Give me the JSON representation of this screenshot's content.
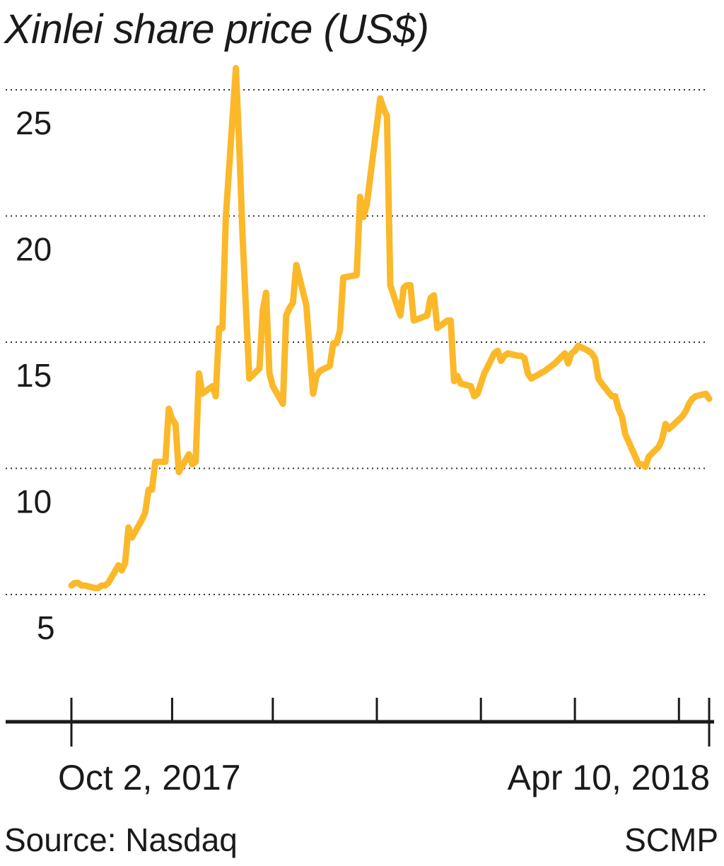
{
  "title": "Xinlei share price (US$)",
  "source": "Source: Nasdaq",
  "credit": "SCMP",
  "colors": {
    "line": "#FBB829",
    "text": "#1a1a1a",
    "grid": "#333333"
  },
  "chart_data": {
    "type": "line",
    "title": "Xinlei share price (US$)",
    "xlabel": "",
    "ylabel": "",
    "ylim": [
      0,
      26
    ],
    "yticks": [
      5,
      10,
      15,
      20,
      25
    ],
    "grid": "horizontal dotted",
    "x_labels": {
      "start": "Oct 2, 2017",
      "end": "Apr 10, 2018"
    },
    "x_range": [
      "2017-10-02",
      "2018-04-10"
    ],
    "series": [
      {
        "dates": [
          "2017-10-02",
          "2017-10-03",
          "2017-10-04",
          "2017-10-05",
          "2017-10-06",
          "2017-10-09",
          "2017-10-10",
          "2017-10-11",
          "2017-10-12",
          "2017-10-13",
          "2017-10-16",
          "2017-10-17",
          "2017-10-18",
          "2017-10-19",
          "2017-10-20",
          "2017-10-23",
          "2017-10-24",
          "2017-10-25",
          "2017-10-26",
          "2017-10-27",
          "2017-10-30",
          "2017-10-31",
          "2017-11-01",
          "2017-11-02",
          "2017-11-03",
          "2017-11-06",
          "2017-11-07",
          "2017-11-08",
          "2017-11-09",
          "2017-11-10",
          "2017-11-13",
          "2017-11-14",
          "2017-11-15",
          "2017-11-16",
          "2017-11-17",
          "2017-11-20",
          "2017-11-21",
          "2017-11-22",
          "2017-11-24",
          "2017-11-27",
          "2017-11-28",
          "2017-11-29",
          "2017-11-30",
          "2017-12-01",
          "2017-12-04",
          "2017-12-05",
          "2017-12-06",
          "2017-12-07",
          "2017-12-08",
          "2017-12-11",
          "2017-12-12",
          "2017-12-13",
          "2017-12-14",
          "2017-12-15",
          "2017-12-18",
          "2017-12-19",
          "2017-12-20",
          "2017-12-21",
          "2017-12-22",
          "2017-12-26",
          "2017-12-27",
          "2017-12-28",
          "2017-12-29",
          "2018-01-02",
          "2018-01-03",
          "2018-01-04",
          "2018-01-05",
          "2018-01-08",
          "2018-01-09",
          "2018-01-10",
          "2018-01-11",
          "2018-01-12",
          "2018-01-16",
          "2018-01-17",
          "2018-01-18",
          "2018-01-19",
          "2018-01-22",
          "2018-01-23",
          "2018-01-24",
          "2018-01-25",
          "2018-01-26",
          "2018-01-29",
          "2018-01-30",
          "2018-01-31",
          "2018-02-01",
          "2018-02-02",
          "2018-02-05",
          "2018-02-06",
          "2018-02-07",
          "2018-02-08",
          "2018-02-09",
          "2018-02-12",
          "2018-02-13",
          "2018-02-14",
          "2018-02-15",
          "2018-02-16",
          "2018-02-20",
          "2018-02-21",
          "2018-02-22",
          "2018-02-23",
          "2018-02-26",
          "2018-02-27",
          "2018-02-28",
          "2018-03-01",
          "2018-03-02",
          "2018-03-05",
          "2018-03-06",
          "2018-03-07",
          "2018-03-08",
          "2018-03-09",
          "2018-03-12",
          "2018-03-13",
          "2018-03-14",
          "2018-03-15",
          "2018-03-16",
          "2018-03-19",
          "2018-03-20",
          "2018-03-21",
          "2018-03-22",
          "2018-03-23",
          "2018-03-26",
          "2018-03-27",
          "2018-03-28",
          "2018-03-29",
          "2018-04-02",
          "2018-04-03",
          "2018-04-04",
          "2018-04-05",
          "2018-04-06",
          "2018-04-09",
          "2018-04-10"
        ],
        "values": [
          5.4,
          5.5,
          5.5,
          5.4,
          5.4,
          5.3,
          5.3,
          5.4,
          5.4,
          5.5,
          6.2,
          6.0,
          6.3,
          7.7,
          7.3,
          8.0,
          8.3,
          9.2,
          9.2,
          10.3,
          10.3,
          12.4,
          12.0,
          11.8,
          9.9,
          10.6,
          10.2,
          10.3,
          13.8,
          13.0,
          13.3,
          12.9,
          15.6,
          15.6,
          20.0,
          25.9,
          22.8,
          19.2,
          13.6,
          14.0,
          16.3,
          17.0,
          13.8,
          13.3,
          12.6,
          16.1,
          16.4,
          16.6,
          18.1,
          16.5,
          14.7,
          13.0,
          13.7,
          13.9,
          14.1,
          15.0,
          15.0,
          15.5,
          17.6,
          17.7,
          20.8,
          20.0,
          20.5,
          24.7,
          24.3,
          24.0,
          17.3,
          16.1,
          17.2,
          17.3,
          17.3,
          15.9,
          16.1,
          16.8,
          16.9,
          15.6,
          15.9,
          15.9,
          13.5,
          13.7,
          13.4,
          13.3,
          12.9,
          13.0,
          13.4,
          13.8,
          14.6,
          14.7,
          14.3,
          14.5,
          14.6,
          14.5,
          14.5,
          14.4,
          13.8,
          13.6,
          13.9,
          14.0,
          14.1,
          14.2,
          14.6,
          14.2,
          14.6,
          14.7,
          14.9,
          14.7,
          14.6,
          14.4,
          13.6,
          13.4,
          12.9,
          12.9,
          12.4,
          12.1,
          11.4,
          10.5,
          10.2,
          10.2,
          10.1,
          10.5,
          10.9,
          11.2,
          11.8,
          11.6,
          12.1,
          12.3,
          12.6,
          12.8,
          12.9,
          13.0,
          12.8
        ]
      }
    ]
  }
}
